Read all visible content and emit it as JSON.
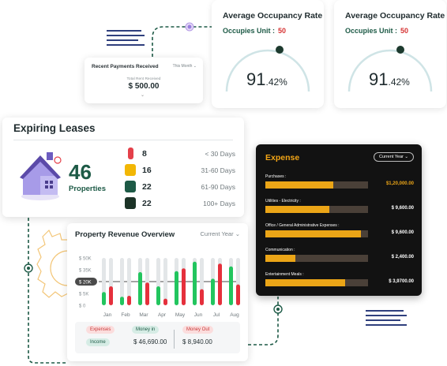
{
  "recent_payments": {
    "title": "Recent Payments Received",
    "filter": "This Month",
    "subtitle": "Total Rent Received",
    "amount": "$ 500.00"
  },
  "occupancy": [
    {
      "title": "Average Occupancy Rate",
      "unit_label": "Occupies Unit :",
      "unit_value": "50",
      "rate_main": "91",
      "rate_decimal": ".42%",
      "rate_percent": 91.42
    },
    {
      "title": "Average Occupancy Rate",
      "unit_label": "Occupies Unit :",
      "unit_value": "50",
      "rate_main": "91",
      "rate_decimal": ".42%",
      "rate_percent": 91.42
    }
  ],
  "leases": {
    "title": "Expiring Leases",
    "count": "46",
    "count_label": "Properties",
    "rows": [
      {
        "count": "8",
        "days": "< 30 Days",
        "color": "#e4404a"
      },
      {
        "count": "16",
        "days": "31-60 Days",
        "color": "#f2b705"
      },
      {
        "count": "22",
        "days": "61-90 Days",
        "color": "#1d5a46"
      },
      {
        "count": "22",
        "days": "100+ Days",
        "color": "#1c3327"
      }
    ]
  },
  "revenue": {
    "title": "Property Revenue Overview",
    "filter": "Current Year",
    "legend": {
      "expenses": "Expenses",
      "income": "Income",
      "money_in_label": "Money in",
      "money_in": "$ 46,690.00",
      "money_out_label": "Money Out",
      "money_out": "$ 8,940.00"
    }
  },
  "chart_data": {
    "type": "bar",
    "title": "Property Revenue Overview",
    "categories": [
      "Jan",
      "Feb",
      "Mar",
      "Apr",
      "May",
      "Jun",
      "Jul",
      "Aug"
    ],
    "yticks": [
      "$ 50K",
      "$ 35K",
      "$ 20K",
      "$ 5K",
      "$ 0"
    ],
    "ylim": [
      0,
      50000
    ],
    "highlight": "$ 20K",
    "series": [
      {
        "name": "Income",
        "color": "#22c55e",
        "values": [
          14000,
          9000,
          35000,
          20000,
          36000,
          46000,
          28000,
          41000
        ]
      },
      {
        "name": "Expenses",
        "color": "#e5303c",
        "values": [
          20000,
          10000,
          24000,
          7000,
          39000,
          17000,
          44000,
          22000
        ]
      },
      {
        "name": "Track",
        "color": "#e3e6e8",
        "values": [
          50000,
          50000,
          50000,
          50000,
          50000,
          50000,
          50000,
          50000
        ]
      }
    ]
  },
  "expense": {
    "title": "Expense",
    "filter": "Current Year",
    "rows": [
      {
        "label": "Purchases :",
        "value": "$1,20,000.00",
        "fraction": 0.66,
        "highlight": true
      },
      {
        "label": "Utilities - Electricity :",
        "value": "$ 9,600.00",
        "fraction": 0.62,
        "highlight": false
      },
      {
        "label": "Office / General Administrative Expenses :",
        "value": "$ 9,600.00",
        "fraction": 0.93,
        "highlight": false
      },
      {
        "label": "Communication :",
        "value": "$ 2,400.00",
        "fraction": 0.29,
        "highlight": false
      },
      {
        "label": "Entertainment Meals :",
        "value": "$ 3,9700.00",
        "fraction": 0.78,
        "highlight": false
      }
    ]
  }
}
